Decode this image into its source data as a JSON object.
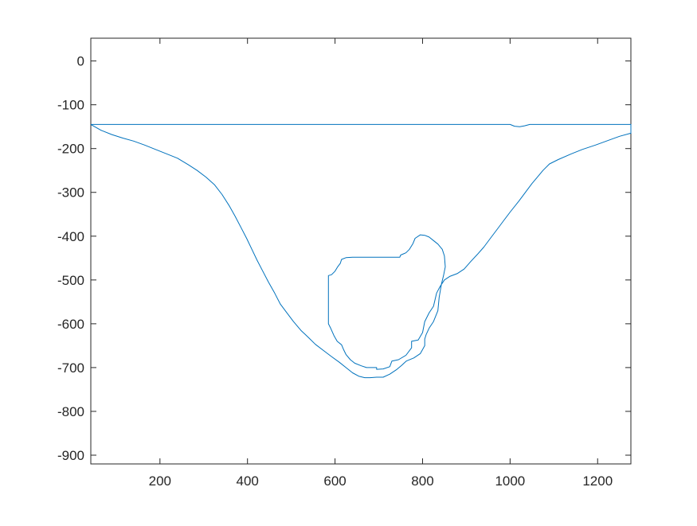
{
  "chart_data": {
    "type": "line",
    "title": "",
    "xlabel": "",
    "ylabel": "",
    "xlim": [
      42,
      1276
    ],
    "ylim": [
      -920,
      52
    ],
    "xticks": [
      200,
      400,
      600,
      800,
      1000,
      1200
    ],
    "yticks": [
      0,
      -100,
      -200,
      -300,
      -400,
      -500,
      -600,
      -700,
      -800,
      -900
    ],
    "grid": false,
    "legend": "none",
    "line_color": "#0072BD",
    "axis_color": "#262626",
    "series": [
      {
        "points": [
          [
            42,
            -145
          ],
          [
            1000,
            -145
          ],
          [
            1010,
            -149
          ],
          [
            1022,
            -150
          ],
          [
            1033,
            -148
          ],
          [
            1045,
            -145
          ],
          [
            1276,
            -145
          ],
          [
            1276,
            -157
          ],
          [
            1276,
            -165
          ],
          [
            1250,
            -172
          ],
          [
            1220,
            -183
          ],
          [
            1195,
            -192
          ],
          [
            1165,
            -202
          ],
          [
            1140,
            -212
          ],
          [
            1110,
            -225
          ],
          [
            1090,
            -235
          ],
          [
            1075,
            -250
          ],
          [
            1065,
            -262
          ],
          [
            1050,
            -280
          ],
          [
            1035,
            -300
          ],
          [
            1020,
            -320
          ],
          [
            1000,
            -345
          ],
          [
            985,
            -365
          ],
          [
            970,
            -385
          ],
          [
            955,
            -405
          ],
          [
            940,
            -425
          ],
          [
            925,
            -442
          ],
          [
            910,
            -458
          ],
          [
            895,
            -475
          ],
          [
            880,
            -485
          ],
          [
            862,
            -492
          ],
          [
            850,
            -500
          ],
          [
            840,
            -515
          ],
          [
            832,
            -530
          ],
          [
            825,
            -560
          ],
          [
            815,
            -575
          ],
          [
            805,
            -595
          ],
          [
            800,
            -620
          ],
          [
            790,
            -637
          ],
          [
            775,
            -640
          ],
          [
            775,
            -655
          ],
          [
            762,
            -672
          ],
          [
            745,
            -682
          ],
          [
            730,
            -685
          ],
          [
            725,
            -698
          ],
          [
            710,
            -703
          ],
          [
            695,
            -704
          ],
          [
            695,
            -700
          ],
          [
            672,
            -700
          ],
          [
            660,
            -696
          ],
          [
            645,
            -690
          ],
          [
            635,
            -682
          ],
          [
            625,
            -670
          ],
          [
            620,
            -660
          ],
          [
            615,
            -648
          ],
          [
            605,
            -640
          ],
          [
            598,
            -628
          ],
          [
            590,
            -610
          ],
          [
            585,
            -600
          ],
          [
            585,
            -490
          ],
          [
            592,
            -488
          ],
          [
            600,
            -480
          ],
          [
            606,
            -470
          ],
          [
            612,
            -462
          ],
          [
            615,
            -453
          ],
          [
            625,
            -449
          ],
          [
            640,
            -448
          ],
          [
            700,
            -448
          ],
          [
            748,
            -448
          ],
          [
            750,
            -443
          ],
          [
            762,
            -438
          ],
          [
            770,
            -430
          ],
          [
            778,
            -417
          ],
          [
            783,
            -405
          ],
          [
            795,
            -397
          ],
          [
            805,
            -398
          ],
          [
            815,
            -402
          ],
          [
            825,
            -410
          ],
          [
            835,
            -418
          ],
          [
            845,
            -430
          ],
          [
            850,
            -445
          ],
          [
            852,
            -470
          ],
          [
            848,
            -490
          ],
          [
            843,
            -510
          ],
          [
            838,
            -540
          ],
          [
            835,
            -570
          ],
          [
            825,
            -595
          ],
          [
            815,
            -610
          ],
          [
            808,
            -625
          ],
          [
            805,
            -635
          ],
          [
            805,
            -650
          ],
          [
            795,
            -668
          ],
          [
            780,
            -678
          ],
          [
            763,
            -685
          ],
          [
            752,
            -695
          ],
          [
            740,
            -705
          ],
          [
            725,
            -715
          ],
          [
            710,
            -722
          ],
          [
            695,
            -722
          ],
          [
            680,
            -723
          ],
          [
            668,
            -723
          ],
          [
            655,
            -720
          ],
          [
            640,
            -712
          ],
          [
            625,
            -700
          ],
          [
            610,
            -688
          ],
          [
            592,
            -675
          ],
          [
            575,
            -662
          ],
          [
            555,
            -647
          ],
          [
            540,
            -632
          ],
          [
            522,
            -615
          ],
          [
            505,
            -595
          ],
          [
            490,
            -575
          ],
          [
            475,
            -555
          ],
          [
            462,
            -530
          ],
          [
            448,
            -505
          ],
          [
            435,
            -480
          ],
          [
            422,
            -455
          ],
          [
            410,
            -430
          ],
          [
            398,
            -405
          ],
          [
            385,
            -380
          ],
          [
            372,
            -355
          ],
          [
            358,
            -330
          ],
          [
            342,
            -305
          ],
          [
            325,
            -283
          ],
          [
            305,
            -265
          ],
          [
            285,
            -250
          ],
          [
            265,
            -237
          ],
          [
            240,
            -222
          ],
          [
            215,
            -212
          ],
          [
            190,
            -202
          ],
          [
            165,
            -192
          ],
          [
            140,
            -183
          ],
          [
            115,
            -176
          ],
          [
            90,
            -168
          ],
          [
            65,
            -158
          ],
          [
            42,
            -145
          ]
        ]
      }
    ]
  }
}
